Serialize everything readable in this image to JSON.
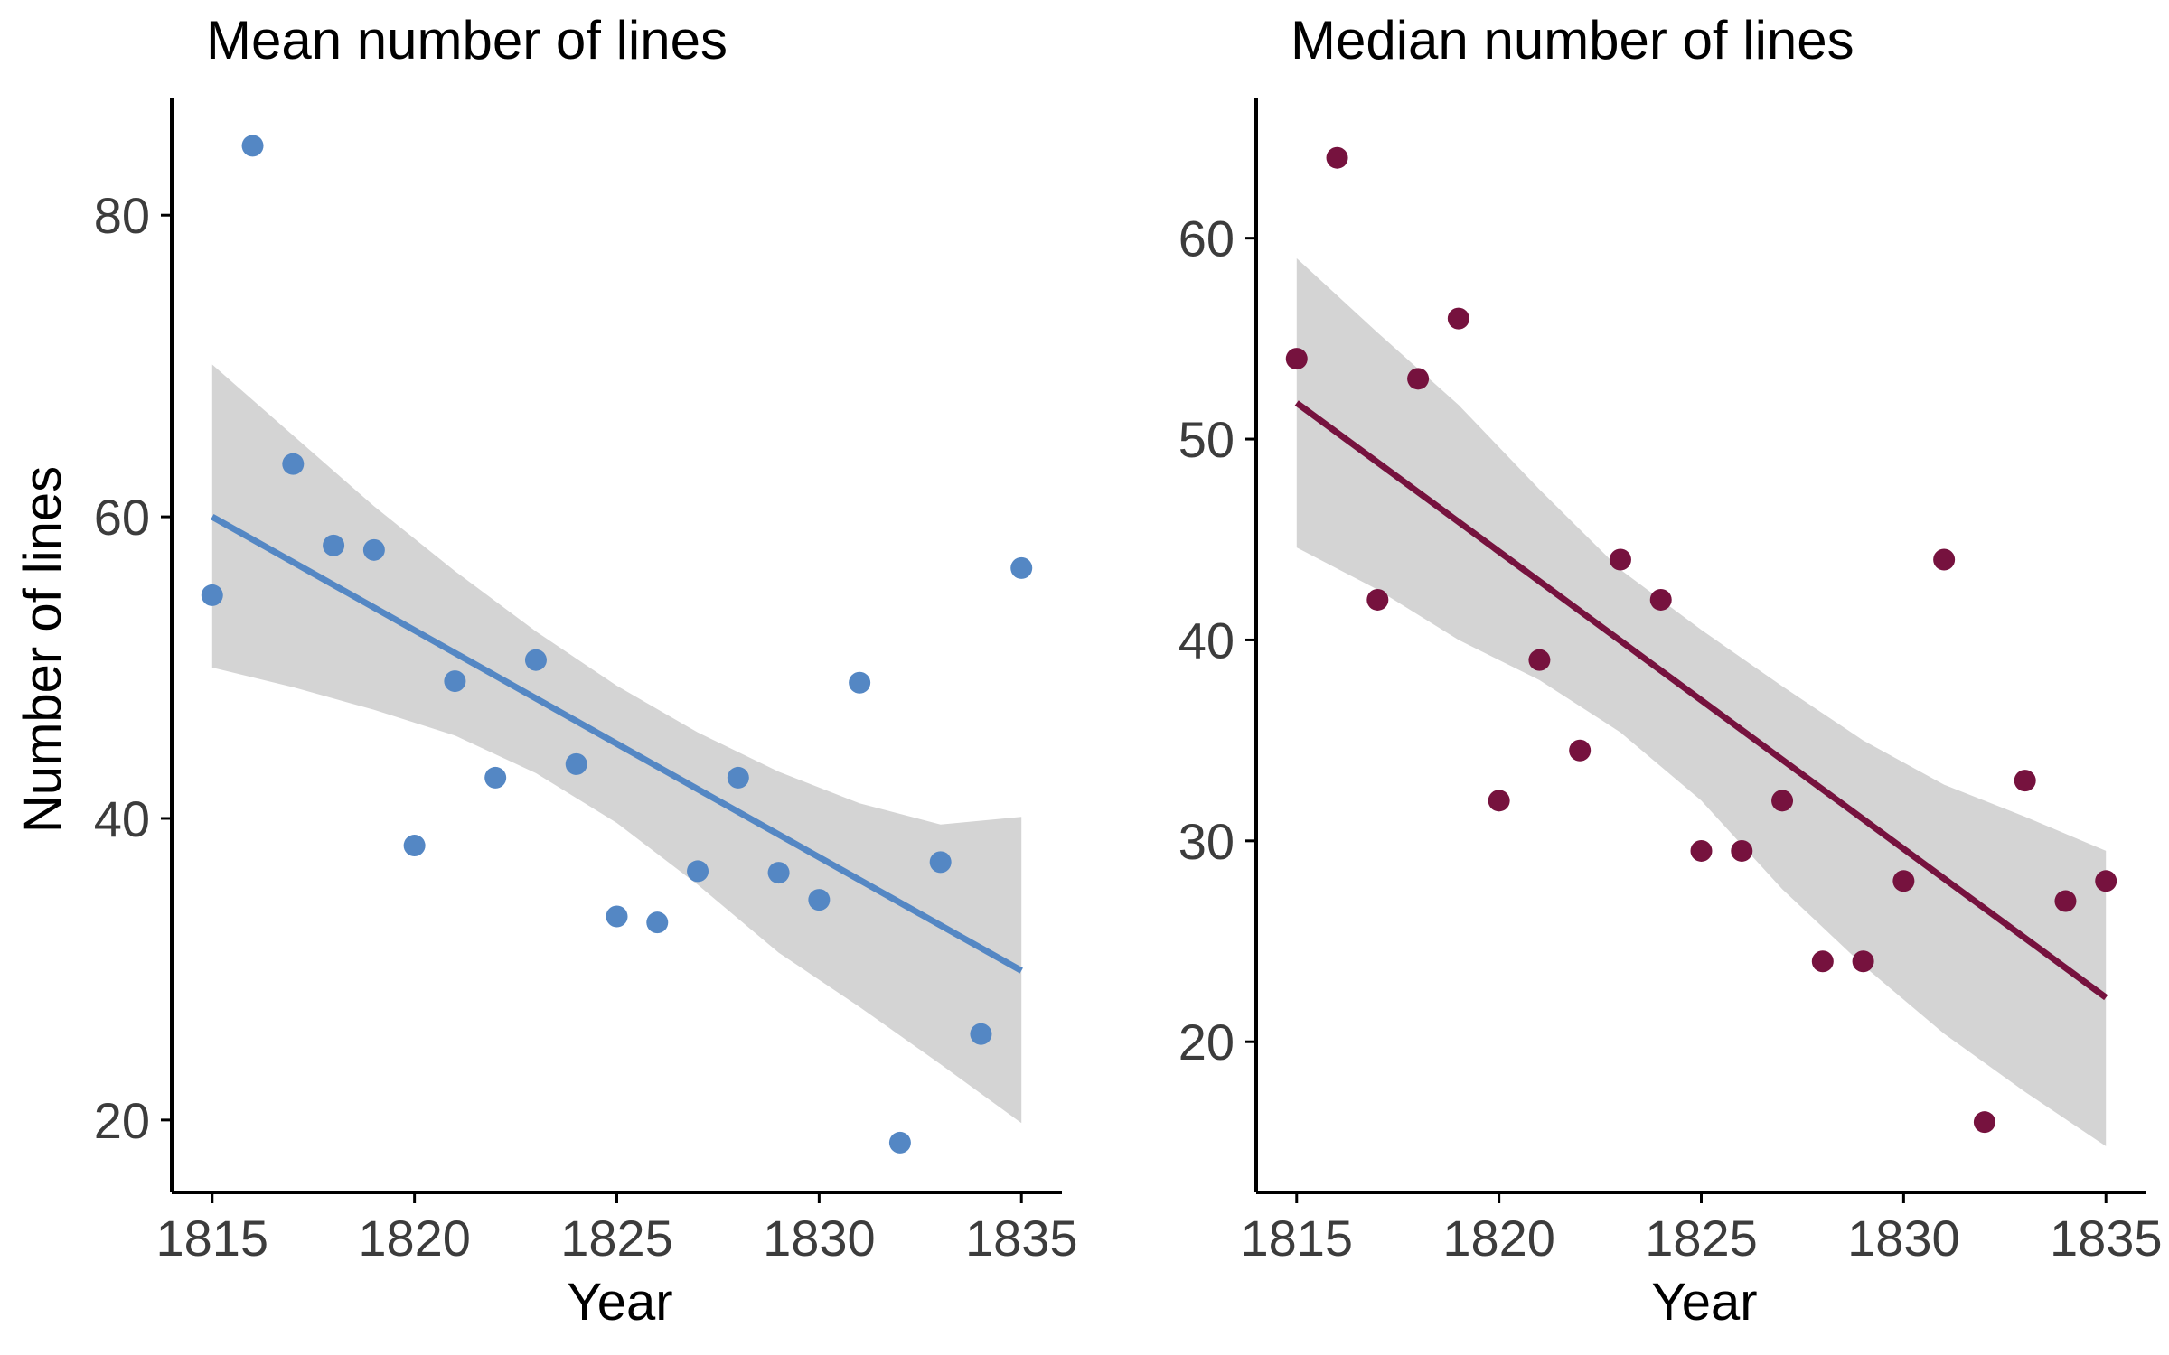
{
  "chart_data": [
    {
      "type": "scatter",
      "title": "Mean number of lines",
      "xlabel": "Year",
      "ylabel": "Number of lines",
      "xlim": [
        1814,
        1836
      ],
      "ylim": [
        15.2,
        87.8
      ],
      "xticks": [
        1815,
        1820,
        1825,
        1830,
        1835
      ],
      "yticks": [
        20,
        40,
        60,
        80
      ],
      "grid": false,
      "legend": "none",
      "point_color": "#5487c4",
      "line_color": "#5487c4",
      "ribbon_color": "#d4d4d4",
      "series": [
        {
          "x": [
            1815,
            1816,
            1817,
            1818,
            1819,
            1820,
            1821,
            1822,
            1823,
            1824,
            1825,
            1826,
            1827,
            1828,
            1829,
            1830,
            1831,
            1832,
            1833,
            1834,
            1835
          ],
          "y": [
            54.8,
            84.6,
            63.5,
            58.1,
            57.8,
            38.2,
            49.1,
            42.7,
            50.5,
            43.6,
            33.5,
            33.1,
            36.5,
            42.7,
            36.4,
            34.6,
            49.0,
            18.5,
            37.1,
            25.7,
            56.6
          ]
        }
      ],
      "fit": {
        "x": [
          1815,
          1835
        ],
        "y": [
          60.0,
          29.9
        ]
      },
      "confidence_band": {
        "x": [
          1815,
          1817,
          1819,
          1821,
          1823,
          1825,
          1827,
          1829,
          1831,
          1833,
          1835
        ],
        "lower": [
          50.0,
          48.7,
          47.2,
          45.5,
          43.0,
          39.7,
          35.6,
          31.1,
          27.5,
          23.7,
          19.8
        ],
        "upper": [
          70.1,
          65.4,
          60.7,
          56.4,
          52.4,
          48.8,
          45.7,
          43.1,
          41.0,
          39.6,
          40.1
        ]
      }
    },
    {
      "type": "scatter",
      "title": "Median number of lines",
      "xlabel": "Year",
      "ylabel": "",
      "xlim": [
        1814,
        1836
      ],
      "ylim": [
        12.5,
        67.0
      ],
      "xticks": [
        1815,
        1820,
        1825,
        1830,
        1835
      ],
      "yticks": [
        20,
        30,
        40,
        50,
        60
      ],
      "grid": false,
      "legend": "none",
      "point_color": "#76123e",
      "line_color": "#76123e",
      "ribbon_color": "#d4d4d4",
      "series": [
        {
          "x": [
            1815,
            1816,
            1817,
            1818,
            1819,
            1820,
            1821,
            1822,
            1823,
            1824,
            1825,
            1826,
            1827,
            1828,
            1829,
            1830,
            1831,
            1832,
            1833,
            1834,
            1835
          ],
          "y": [
            54,
            64,
            42,
            53,
            56,
            32,
            39,
            34.5,
            44,
            42,
            29.5,
            29.5,
            32,
            24,
            24,
            28,
            44,
            16,
            33,
            27,
            28
          ]
        }
      ],
      "fit": {
        "x": [
          1815,
          1835
        ],
        "y": [
          51.8,
          22.2
        ]
      },
      "confidence_band": {
        "x": [
          1815,
          1817,
          1819,
          1821,
          1823,
          1825,
          1827,
          1829,
          1831,
          1833,
          1835
        ],
        "lower": [
          44.6,
          42.5,
          40.0,
          38.0,
          35.4,
          32.0,
          27.6,
          23.8,
          20.4,
          17.5,
          14.8
        ],
        "upper": [
          59.0,
          55.3,
          51.7,
          47.5,
          43.5,
          40.5,
          37.7,
          35.0,
          32.8,
          31.2,
          29.5
        ]
      }
    }
  ]
}
